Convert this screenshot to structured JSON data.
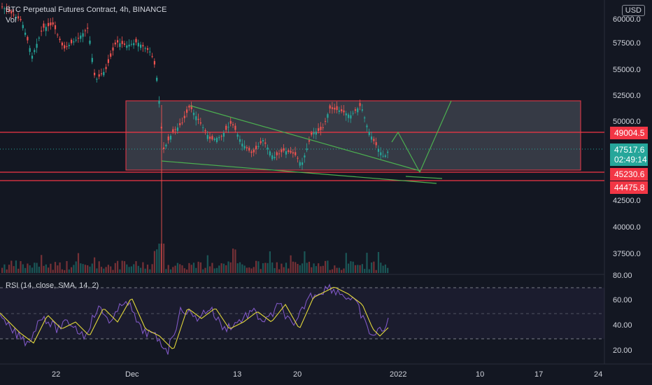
{
  "header": {
    "symbol_title": "BTC Perpetual Futures Contract, 4h, BINANCE",
    "volume_label": "Vol",
    "currency_button": "USD"
  },
  "price_axis": {
    "ticks": [
      "60000.0",
      "57500.0",
      "55000.0",
      "52500.0",
      "50000.0",
      "42500.0",
      "40000.0",
      "37500.0"
    ]
  },
  "price_badges": [
    {
      "text": "49004.5",
      "color": "#f23645"
    },
    {
      "text": "47517.6",
      "color": "#26a69a"
    },
    {
      "text": "02:49:14",
      "color": "#26a69a"
    },
    {
      "text": "45230.6",
      "color": "#f23645"
    },
    {
      "text": "44475.8",
      "color": "#f23645"
    }
  ],
  "rsi": {
    "label": "RSI (14, close, SMA, 14, 2)",
    "axis_ticks": [
      "80.00",
      "60.00",
      "40.00",
      "20.00"
    ]
  },
  "time_axis": {
    "ticks": [
      "22",
      "Dec",
      "13",
      "20",
      "2022",
      "10",
      "17",
      "24"
    ]
  },
  "colors": {
    "up": "#26a69a",
    "down": "#ef5350",
    "level_line": "#f23645",
    "trendline": "#4caf50",
    "rsi_line": "#7e57c2",
    "rsi_ma": "#e3d93a"
  },
  "chart_data": {
    "type": "candlestick",
    "price_levels": [
      49004.5,
      45230.6,
      44475.8
    ],
    "current_price": 47517.6,
    "range_box": {
      "top": 52200,
      "bottom": 45500
    },
    "rsi_bands": [
      70,
      50,
      30
    ]
  }
}
